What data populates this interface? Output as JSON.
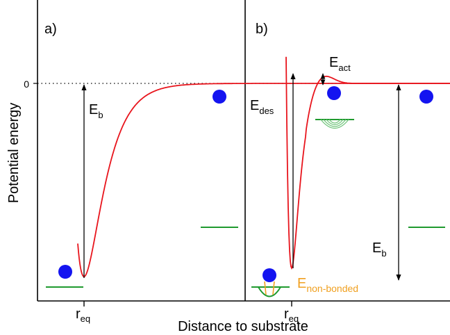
{
  "axes": {
    "ylabel": "Potential energy",
    "xlabel": "Distance to substrate",
    "zero_tick": "0"
  },
  "panel_a": {
    "label": "a)",
    "req": {
      "base": "r",
      "sub": "eq"
    },
    "eb": {
      "base": "E",
      "sub": "b"
    }
  },
  "panel_b": {
    "label": "b)",
    "req": {
      "base": "r",
      "sub": "eq"
    },
    "edes": {
      "base": "E",
      "sub": "des"
    },
    "eact": {
      "base": "E",
      "sub": "act"
    },
    "eb": {
      "base": "E",
      "sub": "b"
    },
    "enb": {
      "base": "E",
      "sub": "non-bonded"
    }
  },
  "colors": {
    "curve": "#e8141c",
    "ball": "#1414f0",
    "level": "#1f9a2e",
    "level_light": "#6fc47a",
    "nonbonded": "#f0a020",
    "axis": "#000000"
  }
}
